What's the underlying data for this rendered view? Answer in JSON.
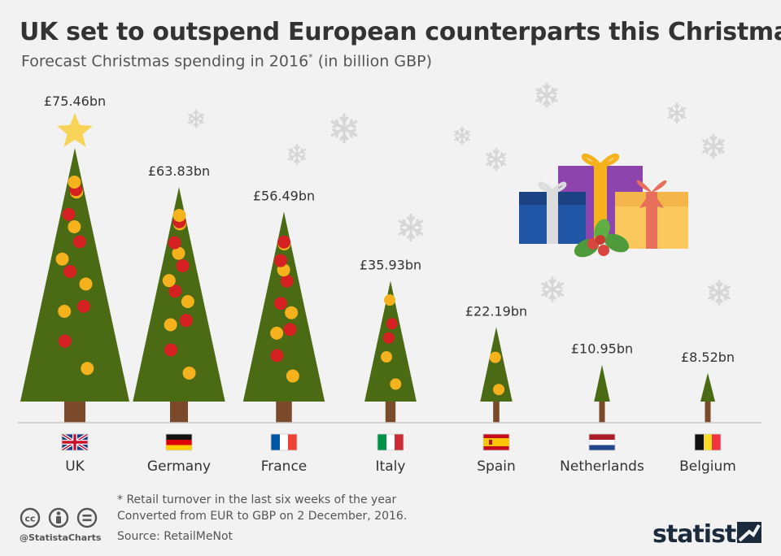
{
  "title": "UK set to outspend European counterparts this Christmas",
  "subtitle": "Forecast Christmas spending in 2016",
  "subtitle_mark": "*",
  "subtitle_unit": "(in billion GBP)",
  "chart_data": {
    "type": "bar",
    "title": "UK set to outspend European counterparts this Christmas",
    "subtitle": "Forecast Christmas spending in 2016* (in billion GBP)",
    "categories": [
      "UK",
      "Germany",
      "France",
      "Italy",
      "Spain",
      "Netherlands",
      "Belgium"
    ],
    "values": [
      75.46,
      63.83,
      56.49,
      35.93,
      22.19,
      10.95,
      8.52
    ],
    "value_labels": [
      "£75.46bn",
      "£63.83bn",
      "£56.49bn",
      "£35.93bn",
      "£22.19bn",
      "£10.95bn",
      "£8.52bn"
    ],
    "unit": "billion GBP",
    "ylim": [
      0,
      80
    ],
    "grid": false,
    "mark_style": "christmas-tree"
  },
  "footnote_line1": "* Retail turnover in the last six weeks of the year",
  "footnote_line2": "Converted from EUR to GBP on 2 December, 2016.",
  "source": "Source: RetailMeNot",
  "handle": "@StatistaCharts",
  "brand": "statista",
  "colors": {
    "tree": "#4a6a14",
    "trunk": "#7a4a2a",
    "ornament_red": "#d42020",
    "ornament_yellow": "#f5b21d",
    "star": "#f7d358",
    "background": "#f2f2f2"
  },
  "icons": [
    "cc-icon",
    "by-icon",
    "nd-icon",
    "snowflake-icon",
    "gift-icon",
    "holly-icon",
    "star-icon"
  ]
}
